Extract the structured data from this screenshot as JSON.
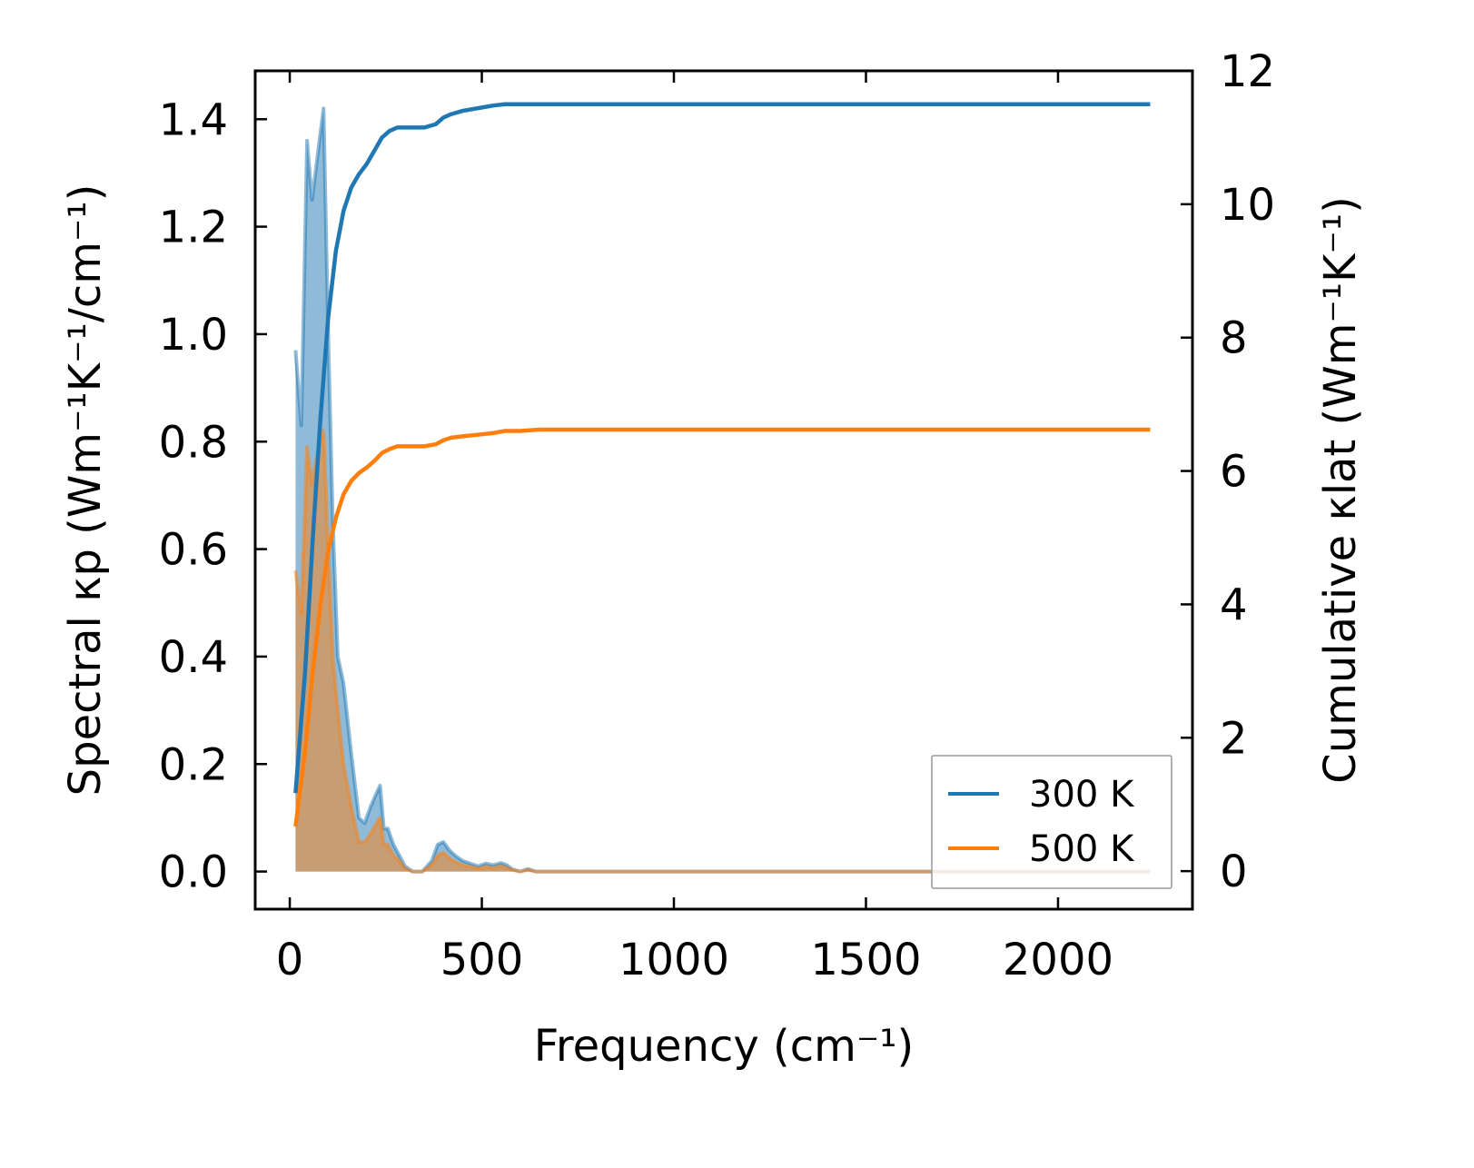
{
  "chart_data": {
    "type": "line",
    "xlabel": "Frequency (cm⁻¹)",
    "ylabel_left": "Spectral κp (Wm⁻¹K⁻¹/cm⁻¹)",
    "ylabel_right": "Cumulative κlat (Wm⁻¹K⁻¹)",
    "xlim": [
      -90,
      2350
    ],
    "ylim_left": [
      -0.07,
      1.49
    ],
    "ylim_right": [
      -0.57,
      12.0
    ],
    "xticks": [
      0,
      500,
      1000,
      1500,
      2000
    ],
    "xtick_labels": [
      "0",
      "500",
      "1000",
      "1500",
      "2000"
    ],
    "yticks_left": [
      0.0,
      0.2,
      0.4,
      0.6,
      0.8,
      1.0,
      1.2,
      1.4
    ],
    "ytick_labels_left": [
      "0.0",
      "0.2",
      "0.4",
      "0.6",
      "0.8",
      "1.0",
      "1.2",
      "1.4"
    ],
    "yticks_right": [
      0,
      2,
      4,
      6,
      8,
      10,
      12
    ],
    "ytick_labels_right": [
      "0",
      "2",
      "4",
      "6",
      "8",
      "10",
      "12"
    ],
    "legend_position": "lower right",
    "series": [
      {
        "name": "300 K",
        "color": "#1f77b4",
        "spectral": {
          "x": [
            15,
            30,
            45,
            58,
            72,
            88,
            100,
            112,
            125,
            140,
            160,
            180,
            195,
            210,
            222,
            235,
            245,
            255,
            270,
            285,
            300,
            320,
            345,
            370,
            385,
            400,
            415,
            430,
            450,
            470,
            490,
            510,
            530,
            550,
            565,
            580,
            600,
            620,
            640,
            660,
            2240
          ],
          "y": [
            0.97,
            0.83,
            1.36,
            1.25,
            1.33,
            1.42,
            1.0,
            0.65,
            0.4,
            0.35,
            0.22,
            0.1,
            0.09,
            0.12,
            0.14,
            0.16,
            0.08,
            0.08,
            0.05,
            0.03,
            0.01,
            0.0,
            0.0,
            0.02,
            0.05,
            0.055,
            0.04,
            0.03,
            0.02,
            0.015,
            0.01,
            0.015,
            0.012,
            0.016,
            0.012,
            0.004,
            0.0,
            0.005,
            0.0,
            0.0,
            0.0
          ]
        },
        "cumulative": {
          "x": [
            15,
            40,
            60,
            80,
            100,
            120,
            140,
            160,
            180,
            200,
            220,
            240,
            260,
            280,
            300,
            350,
            380,
            400,
            420,
            450,
            500,
            530,
            560,
            600,
            650,
            700,
            2240
          ],
          "y": [
            1.17,
            3.0,
            5.0,
            6.8,
            8.3,
            9.3,
            9.9,
            10.25,
            10.45,
            10.6,
            10.8,
            11.0,
            11.1,
            11.15,
            11.15,
            11.15,
            11.2,
            11.3,
            11.35,
            11.4,
            11.45,
            11.48,
            11.5,
            11.5,
            11.5,
            11.5,
            11.5
          ]
        }
      },
      {
        "name": "500 K",
        "color": "#ff7f0e",
        "spectral": {
          "x": [
            15,
            30,
            45,
            58,
            72,
            88,
            100,
            112,
            125,
            140,
            160,
            180,
            195,
            210,
            222,
            235,
            245,
            255,
            270,
            285,
            300,
            320,
            345,
            370,
            385,
            400,
            415,
            430,
            450,
            470,
            490,
            510,
            530,
            550,
            565,
            580,
            600,
            620,
            640,
            660,
            2240
          ],
          "y": [
            0.56,
            0.48,
            0.79,
            0.72,
            0.78,
            0.82,
            0.6,
            0.4,
            0.3,
            0.2,
            0.12,
            0.055,
            0.055,
            0.07,
            0.085,
            0.1,
            0.05,
            0.05,
            0.03,
            0.02,
            0.005,
            0.0,
            0.0,
            0.012,
            0.03,
            0.035,
            0.025,
            0.018,
            0.012,
            0.009,
            0.006,
            0.009,
            0.007,
            0.01,
            0.007,
            0.003,
            0.0,
            0.003,
            0.0,
            0.0,
            0.0
          ]
        },
        "cumulative": {
          "x": [
            15,
            40,
            60,
            80,
            100,
            120,
            140,
            160,
            180,
            200,
            220,
            240,
            260,
            280,
            300,
            350,
            380,
            400,
            420,
            450,
            500,
            530,
            560,
            600,
            650,
            700,
            2240
          ],
          "y": [
            0.67,
            1.8,
            3.0,
            4.0,
            4.8,
            5.3,
            5.65,
            5.85,
            5.97,
            6.05,
            6.15,
            6.27,
            6.33,
            6.37,
            6.37,
            6.37,
            6.4,
            6.46,
            6.5,
            6.52,
            6.55,
            6.57,
            6.6,
            6.6,
            6.62,
            6.62,
            6.62
          ]
        }
      }
    ]
  }
}
